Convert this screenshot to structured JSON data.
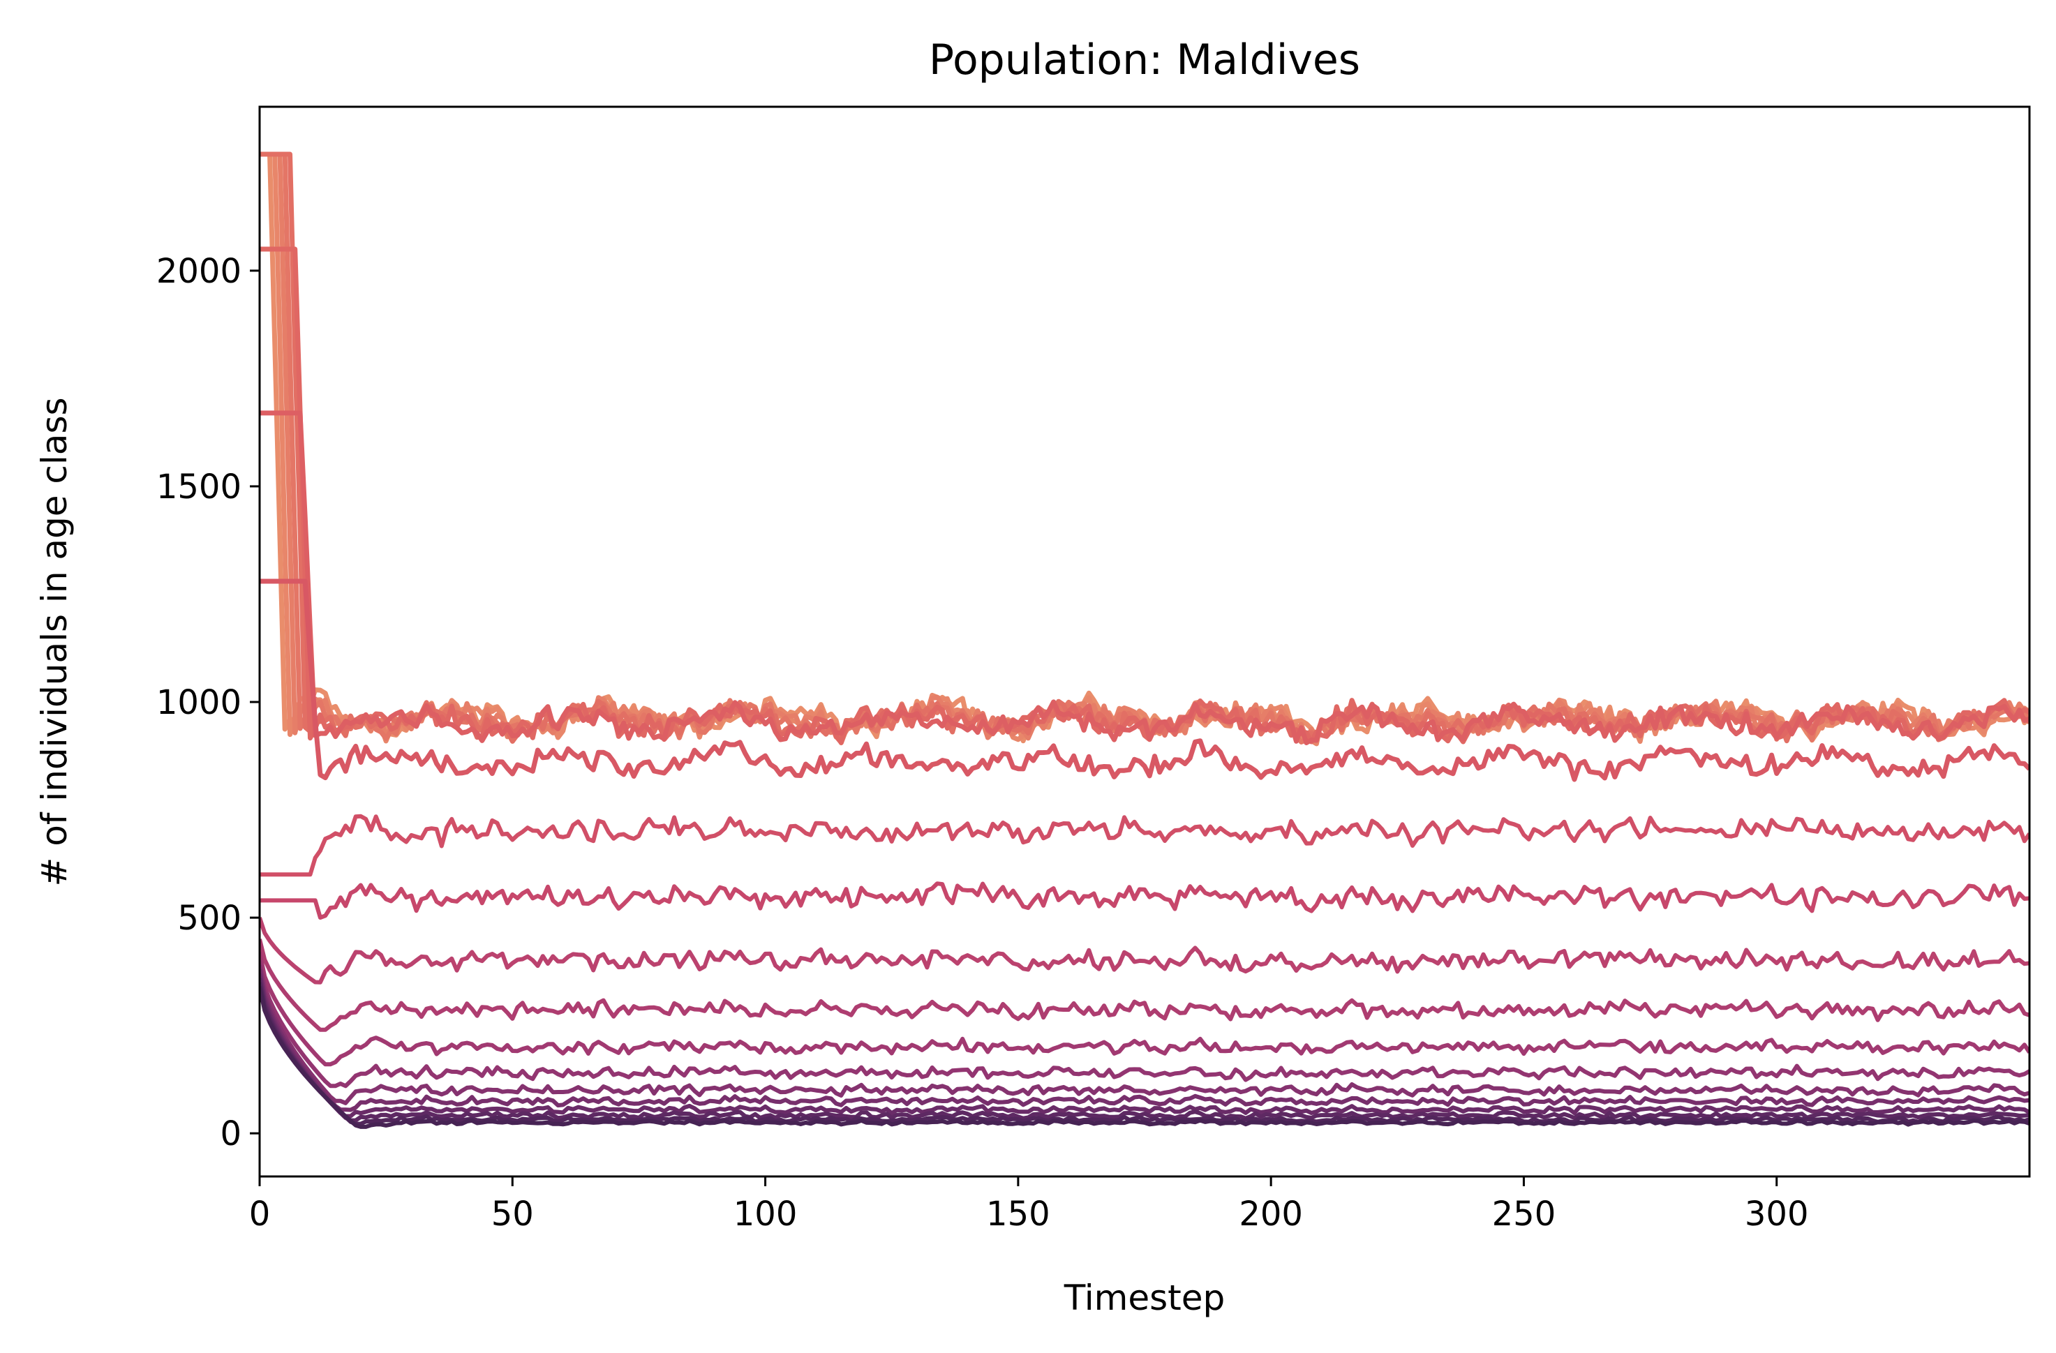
{
  "chart_data": {
    "type": "line",
    "title": "Population: Maldives",
    "xlabel": "Timestep",
    "ylabel": "# of individuals in age class",
    "xlim": [
      0,
      350
    ],
    "ylim": [
      -100,
      2380
    ],
    "xticks": [
      0,
      50,
      100,
      150,
      200,
      250,
      300
    ],
    "yticks": [
      0,
      500,
      1000,
      1500,
      2000
    ],
    "grid": false,
    "legend": "none",
    "colormap": "flare (dark purple to light orange)",
    "timesteps": 350,
    "series_count": 20,
    "series": [
      {
        "color": "#e98d6b",
        "initial": 2270,
        "transient_low": 840,
        "mean": 965,
        "amplitude": 35,
        "peak_time": 2
      },
      {
        "color": "#e8866a",
        "initial": 2270,
        "transient_low": 850,
        "mean": 962,
        "amplitude": 35,
        "peak_time": 3
      },
      {
        "color": "#e67e68",
        "initial": 2270,
        "transient_low": 860,
        "mean": 960,
        "amplitude": 35,
        "peak_time": 4
      },
      {
        "color": "#e47666",
        "initial": 2270,
        "transient_low": 870,
        "mean": 958,
        "amplitude": 34,
        "peak_time": 5
      },
      {
        "color": "#e26f64",
        "initial": 2270,
        "transient_low": 880,
        "mean": 956,
        "amplitude": 34,
        "peak_time": 6
      },
      {
        "color": "#e06763",
        "initial": 2050,
        "transient_low": 890,
        "mean": 954,
        "amplitude": 33,
        "peak_time": 7
      },
      {
        "color": "#dd5f63",
        "initial": 1670,
        "transient_low": 900,
        "mean": 950,
        "amplitude": 32,
        "peak_time": 8
      },
      {
        "color": "#d85864",
        "initial": 1280,
        "transient_low": 780,
        "mean": 860,
        "amplitude": 30,
        "peak_time": 9
      },
      {
        "color": "#d14f67",
        "initial": 600,
        "transient_low": 620,
        "mean": 700,
        "amplitude": 32,
        "peak_time": 10
      },
      {
        "color": "#c7476b",
        "initial": 540,
        "transient_low": 470,
        "mean": 548,
        "amplitude": 30,
        "peak_time": 11
      },
      {
        "color": "#bb426e",
        "initial": 500,
        "transient_low": 350,
        "mean": 400,
        "amplitude": 26,
        "peak_time": 12
      },
      {
        "color": "#ae3d70",
        "initial": 450,
        "transient_low": 240,
        "mean": 285,
        "amplitude": 22,
        "peak_time": 13
      },
      {
        "color": "#a13971",
        "initial": 420,
        "transient_low": 160,
        "mean": 200,
        "amplitude": 18,
        "peak_time": 14
      },
      {
        "color": "#933571",
        "initial": 400,
        "transient_low": 110,
        "mean": 140,
        "amplitude": 15,
        "peak_time": 15
      },
      {
        "color": "#85326f",
        "initial": 390,
        "transient_low": 75,
        "mean": 100,
        "amplitude": 12,
        "peak_time": 16
      },
      {
        "color": "#772f6c",
        "initial": 380,
        "transient_low": 55,
        "mean": 75,
        "amplitude": 10,
        "peak_time": 17
      },
      {
        "color": "#6a2c68",
        "initial": 370,
        "transient_low": 40,
        "mean": 55,
        "amplitude": 8,
        "peak_time": 18
      },
      {
        "color": "#5e2963",
        "initial": 360,
        "transient_low": 30,
        "mean": 42,
        "amplitude": 7,
        "peak_time": 19
      },
      {
        "color": "#52265c",
        "initial": 350,
        "transient_low": 22,
        "mean": 32,
        "amplitude": 6,
        "peak_time": 20
      },
      {
        "color": "#472354",
        "initial": 340,
        "transient_low": 15,
        "mean": 25,
        "amplitude": 5,
        "peak_time": 21
      }
    ]
  }
}
